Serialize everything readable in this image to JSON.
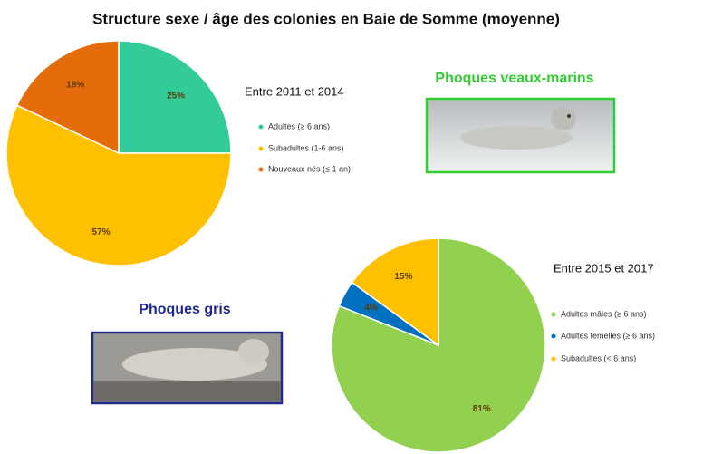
{
  "title": "Structure sexe / âge des colonies en Baie de Somme (moyenne)",
  "labels": [
    "Phoques veaux-marins",
    "Phoques gris"
  ],
  "chart_data": [
    {
      "type": "pie",
      "title": "Entre 2011 et 2014",
      "categories": [
        "Adultes (≥ 6 ans)",
        "Subadultes (1-6 ans)",
        "Nouveaux nés (≤ 1 an)"
      ],
      "values": [
        25,
        57,
        18
      ],
      "value_labels": [
        "25%",
        "57%",
        "18%"
      ],
      "colors": [
        "#33cc99",
        "#ffc000",
        "#e46c0a"
      ]
    },
    {
      "type": "pie",
      "title": "Entre 2015 et 2017",
      "categories": [
        "Adultes mâles (≥ 6 ans)",
        "Adultes femelles (≥ 6 ans)",
        "Subadultes  (< 6 ans)"
      ],
      "values": [
        81,
        4,
        15
      ],
      "value_labels": [
        "81%",
        "4%",
        "15%"
      ],
      "colors": [
        "#92d050",
        "#0070c0",
        "#ffc000"
      ]
    }
  ]
}
